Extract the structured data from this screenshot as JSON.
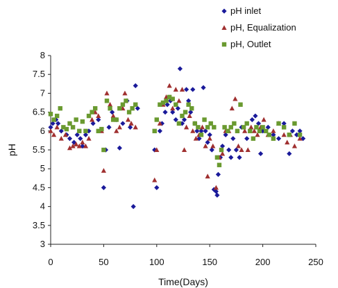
{
  "chart_data": {
    "type": "scatter",
    "title": "",
    "xlabel": "Time(Days)",
    "ylabel": "pH",
    "xlim": [
      0,
      250
    ],
    "ylim": [
      3,
      8
    ],
    "x_ticks": [
      "0",
      "50",
      "100",
      "150",
      "200",
      "250"
    ],
    "y_ticks": [
      "3",
      "3.5",
      "4",
      "4.5",
      "5",
      "5.5",
      "6",
      "6.5",
      "7",
      "7.5",
      "8"
    ],
    "grid": false,
    "legend_position": "top-right",
    "series": [
      {
        "name": "pH inlet",
        "marker": "diamond",
        "color": "#1a1a9a",
        "points": [
          [
            0,
            6.1
          ],
          [
            2,
            6.2
          ],
          [
            5,
            6.3
          ],
          [
            7,
            6.2
          ],
          [
            10,
            6.0
          ],
          [
            15,
            5.9
          ],
          [
            18,
            5.8
          ],
          [
            22,
            5.7
          ],
          [
            25,
            5.9
          ],
          [
            28,
            5.8
          ],
          [
            30,
            5.6
          ],
          [
            33,
            5.9
          ],
          [
            36,
            6.0
          ],
          [
            40,
            6.2
          ],
          [
            45,
            6.3
          ],
          [
            50,
            4.5
          ],
          [
            52,
            5.5
          ],
          [
            55,
            6.1
          ],
          [
            58,
            6.5
          ],
          [
            62,
            6.3
          ],
          [
            65,
            5.55
          ],
          [
            68,
            6.2
          ],
          [
            72,
            6.8
          ],
          [
            75,
            6.1
          ],
          [
            78,
            4.0
          ],
          [
            80,
            7.2
          ],
          [
            82,
            6.6
          ],
          [
            98,
            5.5
          ],
          [
            100,
            4.5
          ],
          [
            103,
            6.0
          ],
          [
            105,
            6.2
          ],
          [
            108,
            6.5
          ],
          [
            110,
            6.7
          ],
          [
            113,
            6.8
          ],
          [
            115,
            6.5
          ],
          [
            118,
            6.3
          ],
          [
            120,
            6.6
          ],
          [
            122,
            7.65
          ],
          [
            124,
            6.2
          ],
          [
            126,
            6.3
          ],
          [
            128,
            7.1
          ],
          [
            130,
            6.8
          ],
          [
            132,
            6.5
          ],
          [
            134,
            7.1
          ],
          [
            136,
            6.2
          ],
          [
            138,
            6.0
          ],
          [
            140,
            5.8
          ],
          [
            142,
            6.0
          ],
          [
            144,
            7.15
          ],
          [
            146,
            6.0
          ],
          [
            148,
            5.7
          ],
          [
            150,
            5.9
          ],
          [
            152,
            5.5
          ],
          [
            154,
            4.45
          ],
          [
            156,
            4.4
          ],
          [
            157,
            4.3
          ],
          [
            158,
            4.85
          ],
          [
            160,
            5.3
          ],
          [
            162,
            5.6
          ],
          [
            165,
            5.9
          ],
          [
            168,
            5.5
          ],
          [
            170,
            5.3
          ],
          [
            172,
            5.8
          ],
          [
            175,
            5.5
          ],
          [
            178,
            5.3
          ],
          [
            180,
            6.1
          ],
          [
            185,
            5.8
          ],
          [
            190,
            6.3
          ],
          [
            193,
            6.4
          ],
          [
            196,
            6.2
          ],
          [
            198,
            5.4
          ],
          [
            200,
            6.0
          ],
          [
            205,
            6.1
          ],
          [
            210,
            5.9
          ],
          [
            215,
            5.8
          ],
          [
            220,
            6.2
          ],
          [
            225,
            5.4
          ],
          [
            228,
            6.0
          ],
          [
            232,
            5.9
          ],
          [
            235,
            6.0
          ],
          [
            238,
            5.8
          ]
        ]
      },
      {
        "name": "pH, Equalization",
        "marker": "triangle",
        "color": "#a03030",
        "points": [
          [
            0,
            6.0
          ],
          [
            3,
            5.9
          ],
          [
            6,
            6.1
          ],
          [
            10,
            5.8
          ],
          [
            14,
            5.9
          ],
          [
            18,
            5.55
          ],
          [
            21,
            5.6
          ],
          [
            24,
            5.65
          ],
          [
            27,
            5.6
          ],
          [
            30,
            5.7
          ],
          [
            33,
            5.6
          ],
          [
            36,
            5.8
          ],
          [
            39,
            6.3
          ],
          [
            42,
            6.5
          ],
          [
            45,
            6.4
          ],
          [
            48,
            6.0
          ],
          [
            50,
            4.95
          ],
          [
            53,
            7.0
          ],
          [
            56,
            6.7
          ],
          [
            59,
            6.4
          ],
          [
            62,
            6.0
          ],
          [
            65,
            6.1
          ],
          [
            68,
            6.6
          ],
          [
            70,
            7.0
          ],
          [
            73,
            6.3
          ],
          [
            76,
            6.2
          ],
          [
            80,
            6.1
          ],
          [
            98,
            4.7
          ],
          [
            100,
            5.5
          ],
          [
            103,
            6.2
          ],
          [
            106,
            6.7
          ],
          [
            109,
            6.9
          ],
          [
            112,
            7.2
          ],
          [
            115,
            6.6
          ],
          [
            118,
            7.1
          ],
          [
            121,
            6.8
          ],
          [
            124,
            7.1
          ],
          [
            126,
            5.5
          ],
          [
            128,
            6.1
          ],
          [
            131,
            6.4
          ],
          [
            134,
            6.0
          ],
          [
            137,
            5.8
          ],
          [
            140,
            5.9
          ],
          [
            143,
            6.1
          ],
          [
            146,
            5.6
          ],
          [
            148,
            4.8
          ],
          [
            150,
            5.8
          ],
          [
            153,
            5.6
          ],
          [
            156,
            4.5
          ],
          [
            159,
            5.3
          ],
          [
            162,
            5.4
          ],
          [
            165,
            6.0
          ],
          [
            168,
            6.0
          ],
          [
            171,
            6.6
          ],
          [
            174,
            6.85
          ],
          [
            177,
            5.6
          ],
          [
            180,
            5.5
          ],
          [
            183,
            6.0
          ],
          [
            186,
            5.5
          ],
          [
            189,
            6.1
          ],
          [
            192,
            6.0
          ],
          [
            195,
            5.9
          ],
          [
            198,
            6.1
          ],
          [
            201,
            6.3
          ],
          [
            205,
            5.9
          ],
          [
            210,
            6.0
          ],
          [
            215,
            6.2
          ],
          [
            220,
            5.9
          ],
          [
            223,
            5.7
          ],
          [
            226,
            5.9
          ],
          [
            230,
            5.6
          ],
          [
            235,
            5.8
          ]
        ]
      },
      {
        "name": "pH, Outlet",
        "marker": "square",
        "color": "#6a9a30",
        "points": [
          [
            0,
            6.45
          ],
          [
            3,
            6.3
          ],
          [
            6,
            6.4
          ],
          [
            9,
            6.6
          ],
          [
            12,
            6.1
          ],
          [
            15,
            6.05
          ],
          [
            18,
            6.2
          ],
          [
            21,
            6.1
          ],
          [
            24,
            6.3
          ],
          [
            27,
            6.0
          ],
          [
            30,
            6.25
          ],
          [
            33,
            6.0
          ],
          [
            36,
            6.4
          ],
          [
            39,
            6.5
          ],
          [
            42,
            6.6
          ],
          [
            45,
            6.0
          ],
          [
            48,
            6.05
          ],
          [
            50,
            5.5
          ],
          [
            53,
            6.8
          ],
          [
            56,
            6.6
          ],
          [
            59,
            6.3
          ],
          [
            62,
            6.3
          ],
          [
            65,
            6.6
          ],
          [
            68,
            6.7
          ],
          [
            71,
            6.8
          ],
          [
            74,
            6.5
          ],
          [
            77,
            6.6
          ],
          [
            80,
            6.7
          ],
          [
            98,
            6.0
          ],
          [
            100,
            6.3
          ],
          [
            103,
            6.7
          ],
          [
            106,
            6.75
          ],
          [
            109,
            6.8
          ],
          [
            112,
            6.9
          ],
          [
            115,
            6.85
          ],
          [
            118,
            6.7
          ],
          [
            121,
            6.2
          ],
          [
            124,
            6.4
          ],
          [
            127,
            6.5
          ],
          [
            130,
            6.7
          ],
          [
            133,
            6.6
          ],
          [
            136,
            6.2
          ],
          [
            139,
            6.1
          ],
          [
            142,
            5.9
          ],
          [
            145,
            6.3
          ],
          [
            148,
            6.1
          ],
          [
            151,
            6.2
          ],
          [
            154,
            6.1
          ],
          [
            157,
            5.3
          ],
          [
            159,
            5.1
          ],
          [
            161,
            5.5
          ],
          [
            164,
            6.1
          ],
          [
            167,
            6.0
          ],
          [
            170,
            6.1
          ],
          [
            173,
            6.2
          ],
          [
            176,
            6.0
          ],
          [
            179,
            6.7
          ],
          [
            182,
            6.1
          ],
          [
            185,
            6.2
          ],
          [
            188,
            6.0
          ],
          [
            191,
            5.8
          ],
          [
            194,
            6.1
          ],
          [
            197,
            6.0
          ],
          [
            200,
            6.1
          ],
          [
            203,
            6.0
          ],
          [
            206,
            5.9
          ],
          [
            210,
            5.8
          ],
          [
            215,
            6.2
          ],
          [
            220,
            6.1
          ],
          [
            225,
            5.9
          ],
          [
            230,
            6.2
          ],
          [
            235,
            5.9
          ]
        ]
      }
    ]
  }
}
